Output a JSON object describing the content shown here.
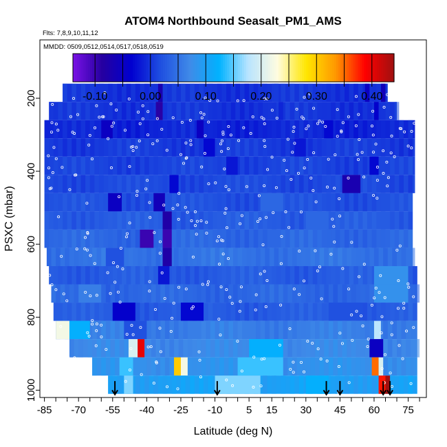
{
  "chart_data": {
    "type": "heatmap",
    "title": "ATOM4 Northbound Seasalt_PM1_AMS",
    "flights_note": "Flts: 7,8,9,10,11,12",
    "dates_note": "MMDD: 0509,0512,0514,0517,0518,0519",
    "xlabel": "Latitude (deg N)",
    "ylabel": "PSXC (mbar)",
    "xlim": [
      -87,
      83
    ],
    "ylim": [
      1020,
      40
    ],
    "x_ticks": [
      -85,
      -70,
      -55,
      -40,
      -25,
      -10,
      5,
      15,
      30,
      45,
      60,
      75
    ],
    "y_ticks": [
      200,
      400,
      600,
      800,
      1000
    ],
    "colorbar": {
      "ticks": [
        -0.1,
        0.0,
        0.1,
        0.2,
        0.3,
        0.4
      ],
      "tick_labels": [
        "-0.10",
        "0.00",
        "0.10",
        "0.20",
        "0.30",
        "0.40"
      ],
      "min": -0.14,
      "max": 0.44,
      "colors": [
        "#7a12e6",
        "#2500a0",
        "#0000d0",
        "#1f4fe0",
        "#3f8ae8",
        "#00b2ff",
        "#b8e4ff",
        "#fffce0",
        "#ffe600",
        "#ff9800",
        "#ff0000",
        "#a01010"
      ]
    },
    "profile_markers_latitude": [
      -54,
      -9,
      39,
      45,
      64,
      67
    ],
    "layers": [
      {
        "p_top": 160,
        "p_bot": 210,
        "x0": -77,
        "x1": 66,
        "value": 0.0,
        "hot": [
          [
            -35,
            -33,
            -0.07
          ],
          [
            16,
            18,
            0.005
          ],
          [
            56,
            58,
            -0.05
          ],
          [
            63,
            65,
            -0.06
          ]
        ]
      },
      {
        "p_top": 210,
        "p_bot": 260,
        "x0": -83,
        "x1": 70,
        "value": 0.0,
        "hot": [
          [
            -36,
            -33,
            -0.09
          ],
          [
            18,
            20,
            -0.01
          ],
          [
            60,
            62,
            -0.04
          ]
        ]
      },
      {
        "p_top": 260,
        "p_bot": 310,
        "x0": -85,
        "x1": 78,
        "value": -0.01,
        "hot": [
          [
            -60,
            -55,
            -0.05
          ],
          [
            -18,
            -15,
            -0.05
          ],
          [
            38,
            42,
            -0.03
          ]
        ]
      },
      {
        "p_top": 310,
        "p_bot": 360,
        "x0": -85,
        "x1": 78,
        "value": 0.005,
        "hot": [
          [
            -15,
            -10,
            -0.03
          ],
          [
            25,
            30,
            -0.02
          ]
        ]
      },
      {
        "p_top": 360,
        "p_bot": 410,
        "x0": -85,
        "x1": 78,
        "value": 0.01,
        "hot": [
          [
            -5,
            0,
            -0.02
          ],
          [
            58,
            62,
            -0.03
          ]
        ]
      },
      {
        "p_top": 410,
        "p_bot": 460,
        "x0": -85,
        "x1": 78,
        "value": 0.015,
        "hot": [
          [
            46,
            54,
            -0.07
          ],
          [
            -30,
            -26,
            -0.03
          ]
        ]
      },
      {
        "p_top": 460,
        "p_bot": 510,
        "x0": -85,
        "x1": 77,
        "value": 0.02,
        "hot": [
          [
            -57,
            -51,
            -0.05
          ],
          [
            -37,
            -32,
            -0.06
          ],
          [
            10,
            20,
            0.04
          ]
        ]
      },
      {
        "p_top": 510,
        "p_bot": 560,
        "x0": -85,
        "x1": 77,
        "value": 0.03,
        "hot": [
          [
            -33,
            -29,
            -0.08
          ],
          [
            30,
            40,
            0.04
          ]
        ]
      },
      {
        "p_top": 560,
        "p_bot": 610,
        "x0": -85,
        "x1": 77,
        "value": 0.04,
        "hot": [
          [
            -43,
            -37,
            -0.1
          ],
          [
            -33,
            -29,
            -0.1
          ]
        ]
      },
      {
        "p_top": 610,
        "p_bot": 660,
        "x0": -84,
        "x1": 77,
        "value": 0.05,
        "hot": [
          [
            -33,
            -29,
            -0.08
          ],
          [
            -58,
            -50,
            0.02
          ]
        ]
      },
      {
        "p_top": 660,
        "p_bot": 710,
        "x0": -83,
        "x1": 79,
        "value": 0.03,
        "hot": [
          [
            60,
            75,
            0.08
          ],
          [
            -35,
            -30,
            -0.02
          ]
        ]
      },
      {
        "p_top": 710,
        "p_bot": 760,
        "x0": -82,
        "x1": 79,
        "value": 0.04,
        "hot": [
          [
            -70,
            -60,
            0.06
          ],
          [
            60,
            75,
            0.08
          ]
        ]
      },
      {
        "p_top": 760,
        "p_bot": 810,
        "x0": -81,
        "x1": 79,
        "value": 0.03,
        "hot": [
          [
            -55,
            -45,
            -0.04
          ],
          [
            -25,
            -15,
            -0.03
          ],
          [
            40,
            55,
            0.02
          ]
        ]
      },
      {
        "p_top": 810,
        "p_bot": 860,
        "x0": -80,
        "x1": 79,
        "value": 0.06,
        "hot": [
          [
            -80,
            -74,
            0.22
          ],
          [
            -74,
            -65,
            0.12
          ],
          [
            60,
            63,
            0.18
          ],
          [
            -50,
            -40,
            0.02
          ]
        ]
      },
      {
        "p_top": 860,
        "p_bot": 910,
        "x0": -74,
        "x1": 79,
        "value": 0.07,
        "hot": [
          [
            -48,
            -44,
            0.2
          ],
          [
            -44,
            -41,
            0.4
          ],
          [
            58,
            64,
            -0.05
          ],
          [
            5,
            20,
            0.12
          ]
        ]
      },
      {
        "p_top": 910,
        "p_bot": 960,
        "x0": -64,
        "x1": 79,
        "value": 0.08,
        "hot": [
          [
            -52,
            -46,
            0.14
          ],
          [
            -28,
            -25,
            0.3
          ],
          [
            -25,
            -22,
            0.22
          ],
          [
            59,
            62,
            0.35
          ],
          [
            62,
            64,
            0.2
          ],
          [
            0,
            20,
            0.14
          ]
        ]
      },
      {
        "p_top": 960,
        "p_bot": 1010,
        "x0": -57,
        "x1": 79,
        "value": 0.1,
        "hot": [
          [
            -50,
            -46,
            0.16
          ],
          [
            -10,
            10,
            0.16
          ],
          [
            30,
            40,
            0.12
          ],
          [
            62,
            65,
            0.38
          ],
          [
            65,
            67,
            0.44
          ]
        ]
      }
    ]
  }
}
